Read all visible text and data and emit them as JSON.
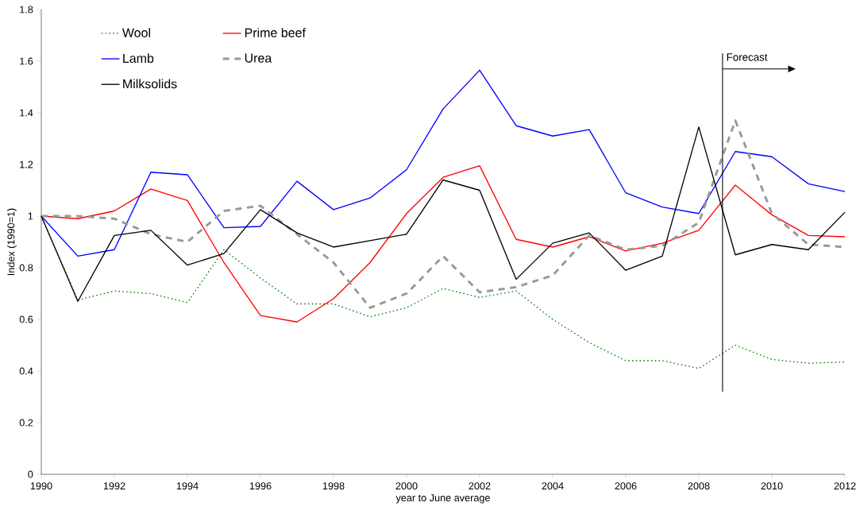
{
  "chart_data": {
    "type": "line",
    "xlabel": "year to June average",
    "ylabel": "Index (1990=1)",
    "x": [
      1990,
      1991,
      1992,
      1993,
      1994,
      1995,
      1996,
      1997,
      1998,
      1999,
      2000,
      2001,
      2002,
      2003,
      2004,
      2005,
      2006,
      2007,
      2008,
      2009,
      2010,
      2011,
      2012
    ],
    "series": [
      {
        "name": "Wool",
        "color": "#008000",
        "line_style": "dotted",
        "values": [
          1.0,
          0.675,
          0.71,
          0.7,
          0.665,
          0.87,
          0.76,
          0.66,
          0.66,
          0.61,
          0.645,
          0.72,
          0.685,
          0.71,
          0.6,
          0.51,
          0.44,
          0.44,
          0.41,
          0.5,
          0.445,
          0.43,
          0.435
        ]
      },
      {
        "name": "Prime beef",
        "color": "#ff0000",
        "line_style": "solid",
        "values": [
          1.0,
          0.99,
          1.02,
          1.105,
          1.06,
          0.82,
          0.615,
          0.59,
          0.68,
          0.82,
          1.01,
          1.15,
          1.195,
          0.91,
          0.88,
          0.92,
          0.865,
          0.895,
          0.945,
          1.12,
          1.005,
          0.925,
          0.92
        ]
      },
      {
        "name": "Lamb",
        "color": "#0000ff",
        "line_style": "solid",
        "values": [
          1.0,
          0.845,
          0.87,
          1.17,
          1.16,
          0.955,
          0.96,
          1.135,
          1.025,
          1.07,
          1.18,
          1.415,
          1.565,
          1.35,
          1.31,
          1.335,
          1.09,
          1.035,
          1.01,
          1.25,
          1.23,
          1.125,
          1.095
        ]
      },
      {
        "name": "Urea",
        "color": "#999999",
        "line_style": "dashed",
        "values": [
          1.0,
          1.0,
          0.99,
          0.93,
          0.9,
          1.02,
          1.04,
          0.93,
          0.82,
          0.645,
          0.7,
          0.845,
          0.705,
          0.725,
          0.77,
          0.925,
          0.87,
          0.885,
          0.975,
          1.37,
          1.01,
          0.89,
          0.88
        ]
      },
      {
        "name": "Milksolids",
        "color": "#000000",
        "line_style": "solid",
        "values": [
          1.0,
          0.67,
          0.925,
          0.945,
          0.81,
          0.855,
          1.025,
          0.935,
          0.88,
          0.905,
          0.93,
          1.14,
          1.1,
          0.755,
          0.895,
          0.935,
          0.79,
          0.845,
          1.345,
          0.85,
          0.89,
          0.87,
          1.015
        ]
      }
    ],
    "xlim": [
      1990,
      2012
    ],
    "xticks": [
      1990,
      1992,
      1994,
      1996,
      1998,
      2000,
      2002,
      2004,
      2006,
      2008,
      2010,
      2012
    ],
    "ylim": [
      0,
      1.8
    ],
    "yticks": [
      0,
      0.2,
      0.4,
      0.6,
      0.8,
      1,
      1.2,
      1.4,
      1.6,
      1.8
    ],
    "ref_lines": [
      {
        "axis": "x",
        "value": 2008.65,
        "label": "Forecast",
        "color": "#000000"
      }
    ],
    "legend": "top left",
    "grid": false,
    "marker": "none"
  }
}
